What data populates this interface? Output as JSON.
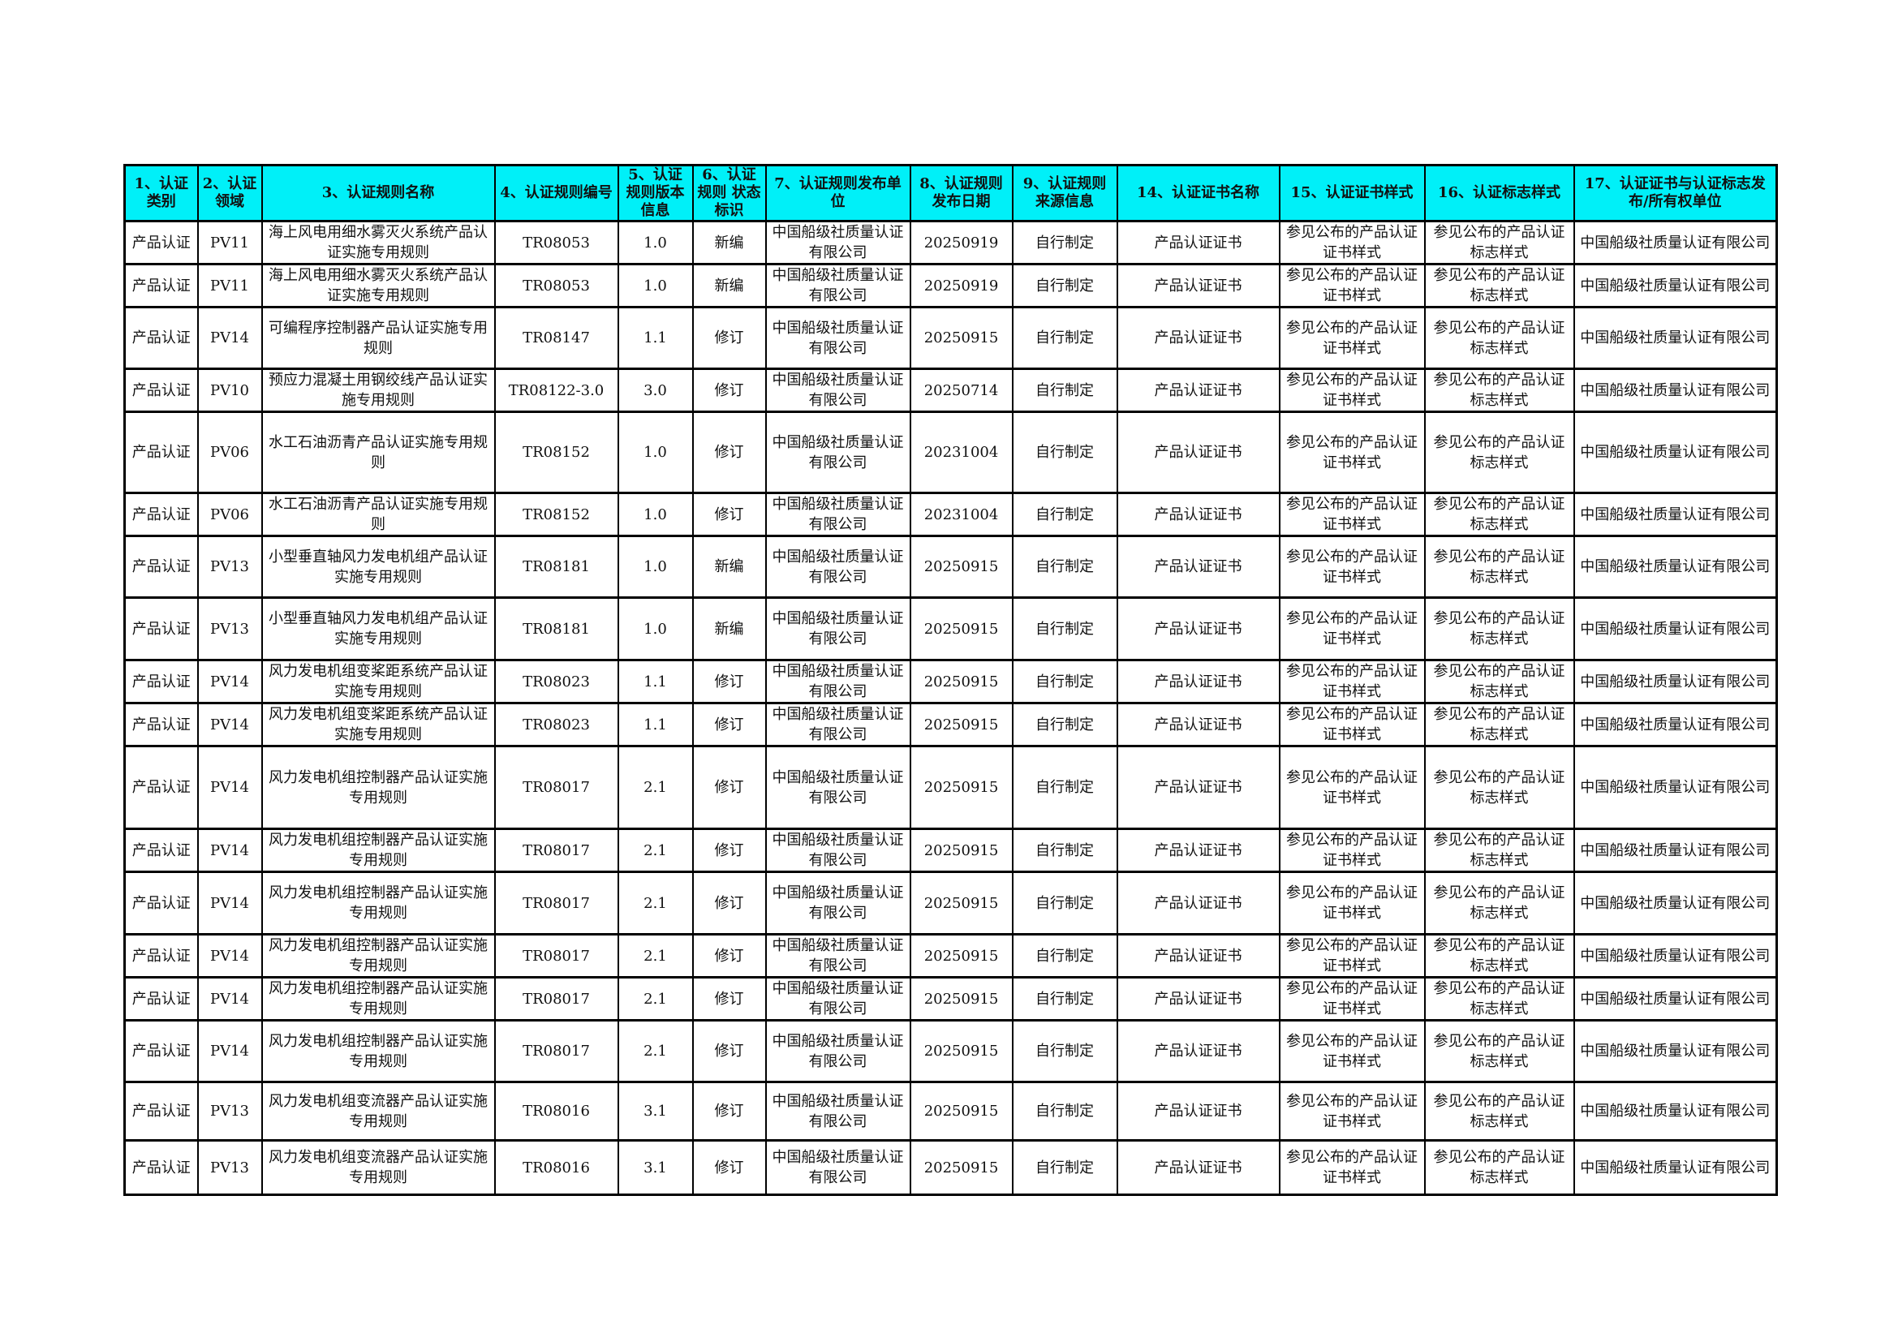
{
  "table": {
    "headers": [
      "1、认证类别",
      "2、认证领域",
      "3、认证规则名称",
      "4、认证规则编号",
      "5、认证规则版本信息",
      "6、认证规则 状态标识",
      "7、认证规则发布单位",
      "8、认证规则发布日期",
      "9、认证规则来源信息",
      "14、认证证书名称",
      "15、认证证书样式",
      "16、认证标志样式",
      "17、认证证书与认证标志发布/所有权单位"
    ],
    "rows": [
      [
        "产品认证",
        "PV11",
        "海上风电用细水雾灭火系统产品认证实施专用规则",
        "TR08053",
        "1.0",
        "新编",
        "中国船级社质量认证有限公司",
        "20250919",
        "自行制定",
        "产品认证证书",
        "参见公布的产品认证证书样式",
        "参见公布的产品认证标志样式",
        "中国船级社质量认证有限公司"
      ],
      [
        "产品认证",
        "PV11",
        "海上风电用细水雾灭火系统产品认证实施专用规则",
        "TR08053",
        "1.0",
        "新编",
        "中国船级社质量认证有限公司",
        "20250919",
        "自行制定",
        "产品认证证书",
        "参见公布的产品认证证书样式",
        "参见公布的产品认证标志样式",
        "中国船级社质量认证有限公司"
      ],
      [
        "产品认证",
        "PV14",
        "可编程序控制器产品认证实施专用规则",
        "TR08147",
        "1.1",
        "修订",
        "中国船级社质量认证有限公司",
        "20250915",
        "自行制定",
        "产品认证证书",
        "参见公布的产品认证证书样式",
        "参见公布的产品认证标志样式",
        "中国船级社质量认证有限公司"
      ],
      [
        "产品认证",
        "PV10",
        "预应力混凝土用钢绞线产品认证实施专用规则",
        "TR08122-3.0",
        "3.0",
        "修订",
        "中国船级社质量认证有限公司",
        "20250714",
        "自行制定",
        "产品认证证书",
        "参见公布的产品认证证书样式",
        "参见公布的产品认证标志样式",
        "中国船级社质量认证有限公司"
      ],
      [
        "产品认证",
        "PV06",
        "水工石油沥青产品认证实施专用规则",
        "TR08152",
        "1.0",
        "修订",
        "中国船级社质量认证有限公司",
        "20231004",
        "自行制定",
        "产品认证证书",
        "参见公布的产品认证证书样式",
        "参见公布的产品认证标志样式",
        "中国船级社质量认证有限公司"
      ],
      [
        "产品认证",
        "PV06",
        "水工石油沥青产品认证实施专用规则",
        "TR08152",
        "1.0",
        "修订",
        "中国船级社质量认证有限公司",
        "20231004",
        "自行制定",
        "产品认证证书",
        "参见公布的产品认证证书样式",
        "参见公布的产品认证标志样式",
        "中国船级社质量认证有限公司"
      ],
      [
        "产品认证",
        "PV13",
        "小型垂直轴风力发电机组产品认证实施专用规则",
        "TR08181",
        "1.0",
        "新编",
        "中国船级社质量认证有限公司",
        "20250915",
        "自行制定",
        "产品认证证书",
        "参见公布的产品认证证书样式",
        "参见公布的产品认证标志样式",
        "中国船级社质量认证有限公司"
      ],
      [
        "产品认证",
        "PV13",
        "小型垂直轴风力发电机组产品认证实施专用规则",
        "TR08181",
        "1.0",
        "新编",
        "中国船级社质量认证有限公司",
        "20250915",
        "自行制定",
        "产品认证证书",
        "参见公布的产品认证证书样式",
        "参见公布的产品认证标志样式",
        "中国船级社质量认证有限公司"
      ],
      [
        "产品认证",
        "PV14",
        "风力发电机组变桨距系统产品认证实施专用规则",
        "TR08023",
        "1.1",
        "修订",
        "中国船级社质量认证有限公司",
        "20250915",
        "自行制定",
        "产品认证证书",
        "参见公布的产品认证证书样式",
        "参见公布的产品认证标志样式",
        "中国船级社质量认证有限公司"
      ],
      [
        "产品认证",
        "PV14",
        "风力发电机组变桨距系统产品认证实施专用规则",
        "TR08023",
        "1.1",
        "修订",
        "中国船级社质量认证有限公司",
        "20250915",
        "自行制定",
        "产品认证证书",
        "参见公布的产品认证证书样式",
        "参见公布的产品认证标志样式",
        "中国船级社质量认证有限公司"
      ],
      [
        "产品认证",
        "PV14",
        "风力发电机组控制器产品认证实施专用规则",
        "TR08017",
        "2.1",
        "修订",
        "中国船级社质量认证有限公司",
        "20250915",
        "自行制定",
        "产品认证证书",
        "参见公布的产品认证证书样式",
        "参见公布的产品认证标志样式",
        "中国船级社质量认证有限公司"
      ],
      [
        "产品认证",
        "PV14",
        "风力发电机组控制器产品认证实施专用规则",
        "TR08017",
        "2.1",
        "修订",
        "中国船级社质量认证有限公司",
        "20250915",
        "自行制定",
        "产品认证证书",
        "参见公布的产品认证证书样式",
        "参见公布的产品认证标志样式",
        "中国船级社质量认证有限公司"
      ],
      [
        "产品认证",
        "PV14",
        "风力发电机组控制器产品认证实施专用规则",
        "TR08017",
        "2.1",
        "修订",
        "中国船级社质量认证有限公司",
        "20250915",
        "自行制定",
        "产品认证证书",
        "参见公布的产品认证证书样式",
        "参见公布的产品认证标志样式",
        "中国船级社质量认证有限公司"
      ],
      [
        "产品认证",
        "PV14",
        "风力发电机组控制器产品认证实施专用规则",
        "TR08017",
        "2.1",
        "修订",
        "中国船级社质量认证有限公司",
        "20250915",
        "自行制定",
        "产品认证证书",
        "参见公布的产品认证证书样式",
        "参见公布的产品认证标志样式",
        "中国船级社质量认证有限公司"
      ],
      [
        "产品认证",
        "PV14",
        "风力发电机组控制器产品认证实施专用规则",
        "TR08017",
        "2.1",
        "修订",
        "中国船级社质量认证有限公司",
        "20250915",
        "自行制定",
        "产品认证证书",
        "参见公布的产品认证证书样式",
        "参见公布的产品认证标志样式",
        "中国船级社质量认证有限公司"
      ],
      [
        "产品认证",
        "PV14",
        "风力发电机组控制器产品认证实施专用规则",
        "TR08017",
        "2.1",
        "修订",
        "中国船级社质量认证有限公司",
        "20250915",
        "自行制定",
        "产品认证证书",
        "参见公布的产品认证证书样式",
        "参见公布的产品认证标志样式",
        "中国船级社质量认证有限公司"
      ],
      [
        "产品认证",
        "PV13",
        "风力发电机组变流器产品认证实施专用规则",
        "TR08016",
        "3.1",
        "修订",
        "中国船级社质量认证有限公司",
        "20250915",
        "自行制定",
        "产品认证证书",
        "参见公布的产品认证证书样式",
        "参见公布的产品认证标志样式",
        "中国船级社质量认证有限公司"
      ],
      [
        "产品认证",
        "PV13",
        "风力发电机组变流器产品认证实施专用规则",
        "TR08016",
        "3.1",
        "修订",
        "中国船级社质量认证有限公司",
        "20250915",
        "自行制定",
        "产品认证证书",
        "参见公布的产品认证证书样式",
        "参见公布的产品认证标志样式",
        "中国船级社质量认证有限公司"
      ]
    ],
    "header_color": "#00f0f8"
  }
}
